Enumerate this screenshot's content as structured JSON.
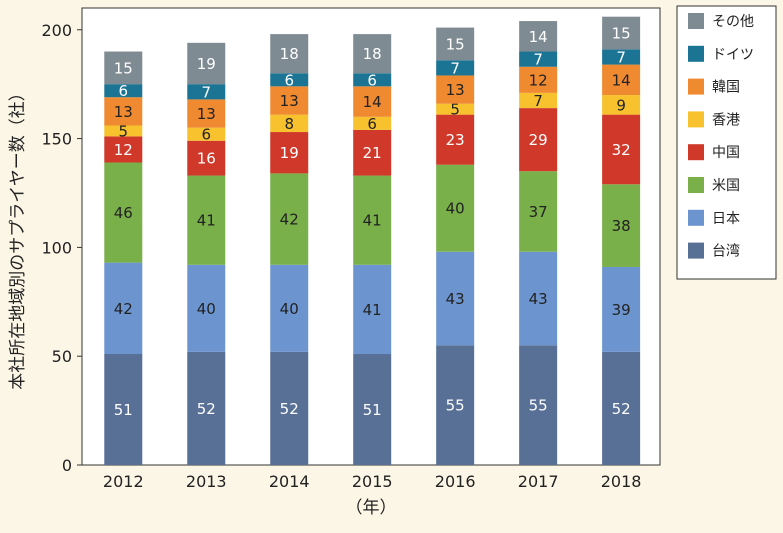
{
  "chart_data": {
    "type": "bar",
    "stacked": true,
    "title": "",
    "xlabel": "（年）",
    "ylabel": "本社所在地域別のサプライヤー数（社）",
    "ylim": [
      0,
      210
    ],
    "yticks": [
      0,
      50,
      100,
      150,
      200
    ],
    "categories": [
      "2012",
      "2013",
      "2014",
      "2015",
      "2016",
      "2017",
      "2018"
    ],
    "legend_position": "right",
    "series": [
      {
        "name": "台湾",
        "color": "#586f96",
        "values": [
          51,
          52,
          52,
          51,
          55,
          55,
          52
        ]
      },
      {
        "name": "日本",
        "color": "#6c95d0",
        "values": [
          42,
          40,
          40,
          41,
          43,
          43,
          39
        ]
      },
      {
        "name": "米国",
        "color": "#7ab04a",
        "values": [
          46,
          41,
          42,
          41,
          40,
          37,
          38
        ]
      },
      {
        "name": "中国",
        "color": "#d0382a",
        "values": [
          12,
          16,
          19,
          21,
          23,
          29,
          32
        ]
      },
      {
        "name": "香港",
        "color": "#f7c22e",
        "values": [
          5,
          6,
          8,
          6,
          5,
          7,
          9
        ]
      },
      {
        "name": "韓国",
        "color": "#ef8a31",
        "values": [
          13,
          13,
          13,
          14,
          13,
          12,
          14
        ]
      },
      {
        "name": "ドイツ",
        "color": "#1b7494",
        "values": [
          6,
          7,
          6,
          6,
          7,
          7,
          7
        ]
      },
      {
        "name": "その他",
        "color": "#7f8b93",
        "values": [
          15,
          19,
          18,
          18,
          15,
          14,
          15
        ]
      }
    ]
  }
}
